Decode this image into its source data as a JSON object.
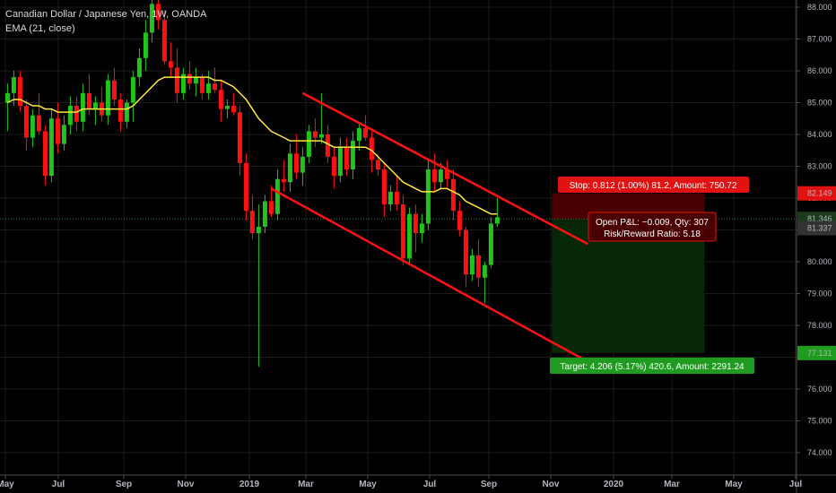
{
  "legend": {
    "symbol": "Canadian Dollar / Japanese Yen, 1W, OANDA",
    "indicator": "EMA (21, close)"
  },
  "colors": {
    "up": "#22c31d",
    "down": "#ff1111",
    "ema": "#ffeb3b",
    "channel": "#ff1111",
    "stop_zone": "#4a0000",
    "target_zone": "#062806",
    "stop_label": "#e31212",
    "target_label": "#1f9b1f",
    "current_price": "#3a7a3a",
    "grid": "#1c1c1c",
    "axis": "#4a4a4a"
  },
  "chart_data": {
    "type": "candlestick",
    "title": "Canadian Dollar / Japanese Yen, 1W, OANDA",
    "x_ticks": [
      "May",
      "Jul",
      "Sep",
      "Nov",
      "2019",
      "Mar",
      "May",
      "Jul",
      "Sep",
      "Nov",
      "2020",
      "Mar",
      "May",
      "Jul"
    ],
    "y_ticks": [
      "88.000",
      "87.000",
      "86.000",
      "85.000",
      "84.000",
      "83.000",
      "82.000",
      "81.000",
      "80.000",
      "79.000",
      "78.000",
      "77.000",
      "76.000",
      "75.000",
      "74.000"
    ],
    "ylim": [
      73.7,
      88.3
    ],
    "candles": [
      [
        85.0,
        85.6,
        84.1,
        85.3
      ],
      [
        85.3,
        86.0,
        84.9,
        85.8
      ],
      [
        85.8,
        86.0,
        84.7,
        84.9
      ],
      [
        84.9,
        85.1,
        83.5,
        83.9
      ],
      [
        83.9,
        84.8,
        83.6,
        84.6
      ],
      [
        84.6,
        85.3,
        84.0,
        84.1
      ],
      [
        84.1,
        84.3,
        82.4,
        82.7
      ],
      [
        82.7,
        84.8,
        82.5,
        84.5
      ],
      [
        84.5,
        85.0,
        83.4,
        83.7
      ],
      [
        83.7,
        84.6,
        83.5,
        84.3
      ],
      [
        84.3,
        85.2,
        84.0,
        84.9
      ],
      [
        84.9,
        85.2,
        84.1,
        84.4
      ],
      [
        84.4,
        85.6,
        84.1,
        85.3
      ],
      [
        85.3,
        85.9,
        84.6,
        84.8
      ],
      [
        84.8,
        85.2,
        84.3,
        85.0
      ],
      [
        85.0,
        85.5,
        84.4,
        84.6
      ],
      [
        84.6,
        85.9,
        84.3,
        85.7
      ],
      [
        85.7,
        86.1,
        84.9,
        85.1
      ],
      [
        85.1,
        85.3,
        84.1,
        84.4
      ],
      [
        84.4,
        85.1,
        84.2,
        85.0
      ],
      [
        85.0,
        86.0,
        84.4,
        85.8
      ],
      [
        85.8,
        86.7,
        85.5,
        86.4
      ],
      [
        86.4,
        87.6,
        86.0,
        87.2
      ],
      [
        87.2,
        88.4,
        86.9,
        88.1
      ],
      [
        88.1,
        88.9,
        87.3,
        87.6
      ],
      [
        87.6,
        87.9,
        86.2,
        86.3
      ],
      [
        86.3,
        86.9,
        85.8,
        86.1
      ],
      [
        86.1,
        86.7,
        85.0,
        85.3
      ],
      [
        85.3,
        86.1,
        85.1,
        85.9
      ],
      [
        85.9,
        86.3,
        85.4,
        85.6
      ],
      [
        85.6,
        86.1,
        85.2,
        85.8
      ],
      [
        85.8,
        85.9,
        85.1,
        85.3
      ],
      [
        85.3,
        86.0,
        85.1,
        85.6
      ],
      [
        85.6,
        86.1,
        85.3,
        85.4
      ],
      [
        85.4,
        85.7,
        84.4,
        84.8
      ],
      [
        84.8,
        85.1,
        84.5,
        84.9
      ],
      [
        84.9,
        85.3,
        84.6,
        84.7
      ],
      [
        84.7,
        84.9,
        82.7,
        83.1
      ],
      [
        83.1,
        83.4,
        81.3,
        81.6
      ],
      [
        81.6,
        82.1,
        80.7,
        80.9
      ],
      [
        80.9,
        81.8,
        76.7,
        81.1
      ],
      [
        81.1,
        82.1,
        80.9,
        81.9
      ],
      [
        81.9,
        82.4,
        81.4,
        81.5
      ],
      [
        81.5,
        82.9,
        81.3,
        82.6
      ],
      [
        82.6,
        83.2,
        82.2,
        82.5
      ],
      [
        82.5,
        83.7,
        82.2,
        83.4
      ],
      [
        83.4,
        84.0,
        82.6,
        82.8
      ],
      [
        82.8,
        83.6,
        82.4,
        83.3
      ],
      [
        83.3,
        84.3,
        83.1,
        84.1
      ],
      [
        84.1,
        84.5,
        83.6,
        83.9
      ],
      [
        83.9,
        85.3,
        83.7,
        84.0
      ],
      [
        84.0,
        84.3,
        83.1,
        83.3
      ],
      [
        83.3,
        83.6,
        82.3,
        82.7
      ],
      [
        82.7,
        83.9,
        82.5,
        83.6
      ],
      [
        83.6,
        83.9,
        82.7,
        82.9
      ],
      [
        82.9,
        84.1,
        82.6,
        83.8
      ],
      [
        83.8,
        84.4,
        83.5,
        84.2
      ],
      [
        84.2,
        84.6,
        83.8,
        83.9
      ],
      [
        83.9,
        84.1,
        82.8,
        83.2
      ],
      [
        83.2,
        83.4,
        82.7,
        82.9
      ],
      [
        82.9,
        83.1,
        81.4,
        81.8
      ],
      [
        81.8,
        82.4,
        81.6,
        82.2
      ],
      [
        82.2,
        82.7,
        81.6,
        81.8
      ],
      [
        81.8,
        82.1,
        79.9,
        80.1
      ],
      [
        80.1,
        81.7,
        79.9,
        81.5
      ],
      [
        81.5,
        81.8,
        80.3,
        80.9
      ],
      [
        80.9,
        81.5,
        80.6,
        81.2
      ],
      [
        81.2,
        83.2,
        81.0,
        82.9
      ],
      [
        82.9,
        83.4,
        82.2,
        82.5
      ],
      [
        82.5,
        83.1,
        82.3,
        82.9
      ],
      [
        82.9,
        83.2,
        82.3,
        82.6
      ],
      [
        82.6,
        82.9,
        81.3,
        81.6
      ],
      [
        81.6,
        81.9,
        80.8,
        81.0
      ],
      [
        81.0,
        81.1,
        79.2,
        79.6
      ],
      [
        79.6,
        80.4,
        79.4,
        80.2
      ],
      [
        80.2,
        80.7,
        79.2,
        79.5
      ],
      [
        79.5,
        80.0,
        78.7,
        79.9
      ],
      [
        79.9,
        81.4,
        79.8,
        81.2
      ],
      [
        81.2,
        82.0,
        81.1,
        81.4
      ]
    ],
    "ema": [
      85.0,
      85.1,
      85.1,
      85.0,
      84.9,
      84.9,
      84.8,
      84.8,
      84.7,
      84.7,
      84.7,
      84.7,
      84.8,
      84.8,
      84.8,
      84.8,
      84.8,
      84.8,
      84.8,
      84.8,
      84.9,
      85.1,
      85.3,
      85.5,
      85.7,
      85.8,
      85.8,
      85.8,
      85.8,
      85.8,
      85.8,
      85.8,
      85.8,
      85.7,
      85.7,
      85.6,
      85.5,
      85.3,
      85.1,
      84.8,
      84.5,
      84.3,
      84.1,
      84.0,
      83.9,
      83.8,
      83.8,
      83.8,
      83.8,
      83.8,
      83.8,
      83.7,
      83.6,
      83.6,
      83.6,
      83.6,
      83.6,
      83.6,
      83.5,
      83.3,
      83.1,
      82.9,
      82.7,
      82.5,
      82.4,
      82.3,
      82.2,
      82.2,
      82.2,
      82.3,
      82.3,
      82.2,
      82.1,
      81.9,
      81.8,
      81.7,
      81.6,
      81.5,
      81.5
    ],
    "channel_upper": {
      "from": [
        47,
        85.3
      ],
      "to": [
        87,
        80.5
      ]
    },
    "channel_lower": {
      "from": [
        42,
        82.3
      ],
      "to": [
        87,
        76.8
      ]
    },
    "position": {
      "entry": 81.337,
      "stop": 82.149,
      "target": 77.131,
      "start_index": 87,
      "end_index": 111
    },
    "current_price": 81.346,
    "price_badges": [
      "82.149",
      "81.346",
      "81.337",
      "77.131"
    ],
    "labels": {
      "stop": "Stop: 0.812 (1.00%) 81.2, Amount: 750.72",
      "pnl": "Open P&L: −0.009, Qty: 307",
      "ratio": "Risk/Reward Ratio: 5.18",
      "target": "Target: 4.206 (5.17%) 420.6, Amount: 2291.24"
    }
  }
}
